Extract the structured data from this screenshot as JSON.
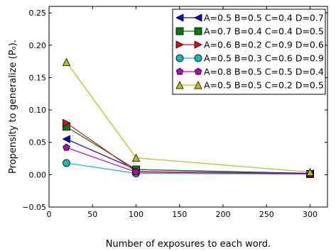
{
  "chart_data": {
    "type": "line",
    "title": "",
    "xlabel": "Number of exposures to each word.",
    "ylabel": "Propensity to generalize (P₀).",
    "xlim": [
      0,
      320
    ],
    "ylim": [
      -0.05,
      0.26
    ],
    "xticks": [
      0,
      50,
      100,
      150,
      200,
      250,
      300
    ],
    "yticks": [
      -0.05,
      0.0,
      0.05,
      0.1,
      0.15,
      0.2,
      0.25
    ],
    "ytick_labels": [
      "−0.05",
      "0.00",
      "0.05",
      "0.10",
      "0.15",
      "0.20",
      "0.25"
    ],
    "legend_position": "top-right",
    "grid": false,
    "x": [
      20,
      100,
      300
    ],
    "series": [
      {
        "name": "A=0.5 B=0.5 C=0.4 D=0.7",
        "values": [
          0.055,
          0.008,
          0.002
        ],
        "color": "#0000ff",
        "marker": "triangle-left"
      },
      {
        "name": "A=0.7 B=0.4 C=0.4 D=0.5",
        "values": [
          0.074,
          0.008,
          0.001
        ],
        "color": "#008000",
        "marker": "square"
      },
      {
        "name": "A=0.6 B=0.2 C=0.9 D=0.6",
        "values": [
          0.08,
          0.005,
          0.001
        ],
        "color": "#ff0000",
        "marker": "triangle-right"
      },
      {
        "name": "A=0.5 B=0.3 C=0.6 D=0.9",
        "values": [
          0.018,
          0.002,
          0.001
        ],
        "color": "#00bfbf",
        "marker": "circle"
      },
      {
        "name": "A=0.8 B=0.5 C=0.5 D=0.4",
        "values": [
          0.042,
          0.004,
          0.001
        ],
        "color": "#bf00bf",
        "marker": "pentagon"
      },
      {
        "name": "A=0.5 B=0.5 C=0.2 D=0.5",
        "values": [
          0.174,
          0.026,
          0.004
        ],
        "color": "#bfbf00",
        "marker": "triangle-up"
      }
    ]
  }
}
